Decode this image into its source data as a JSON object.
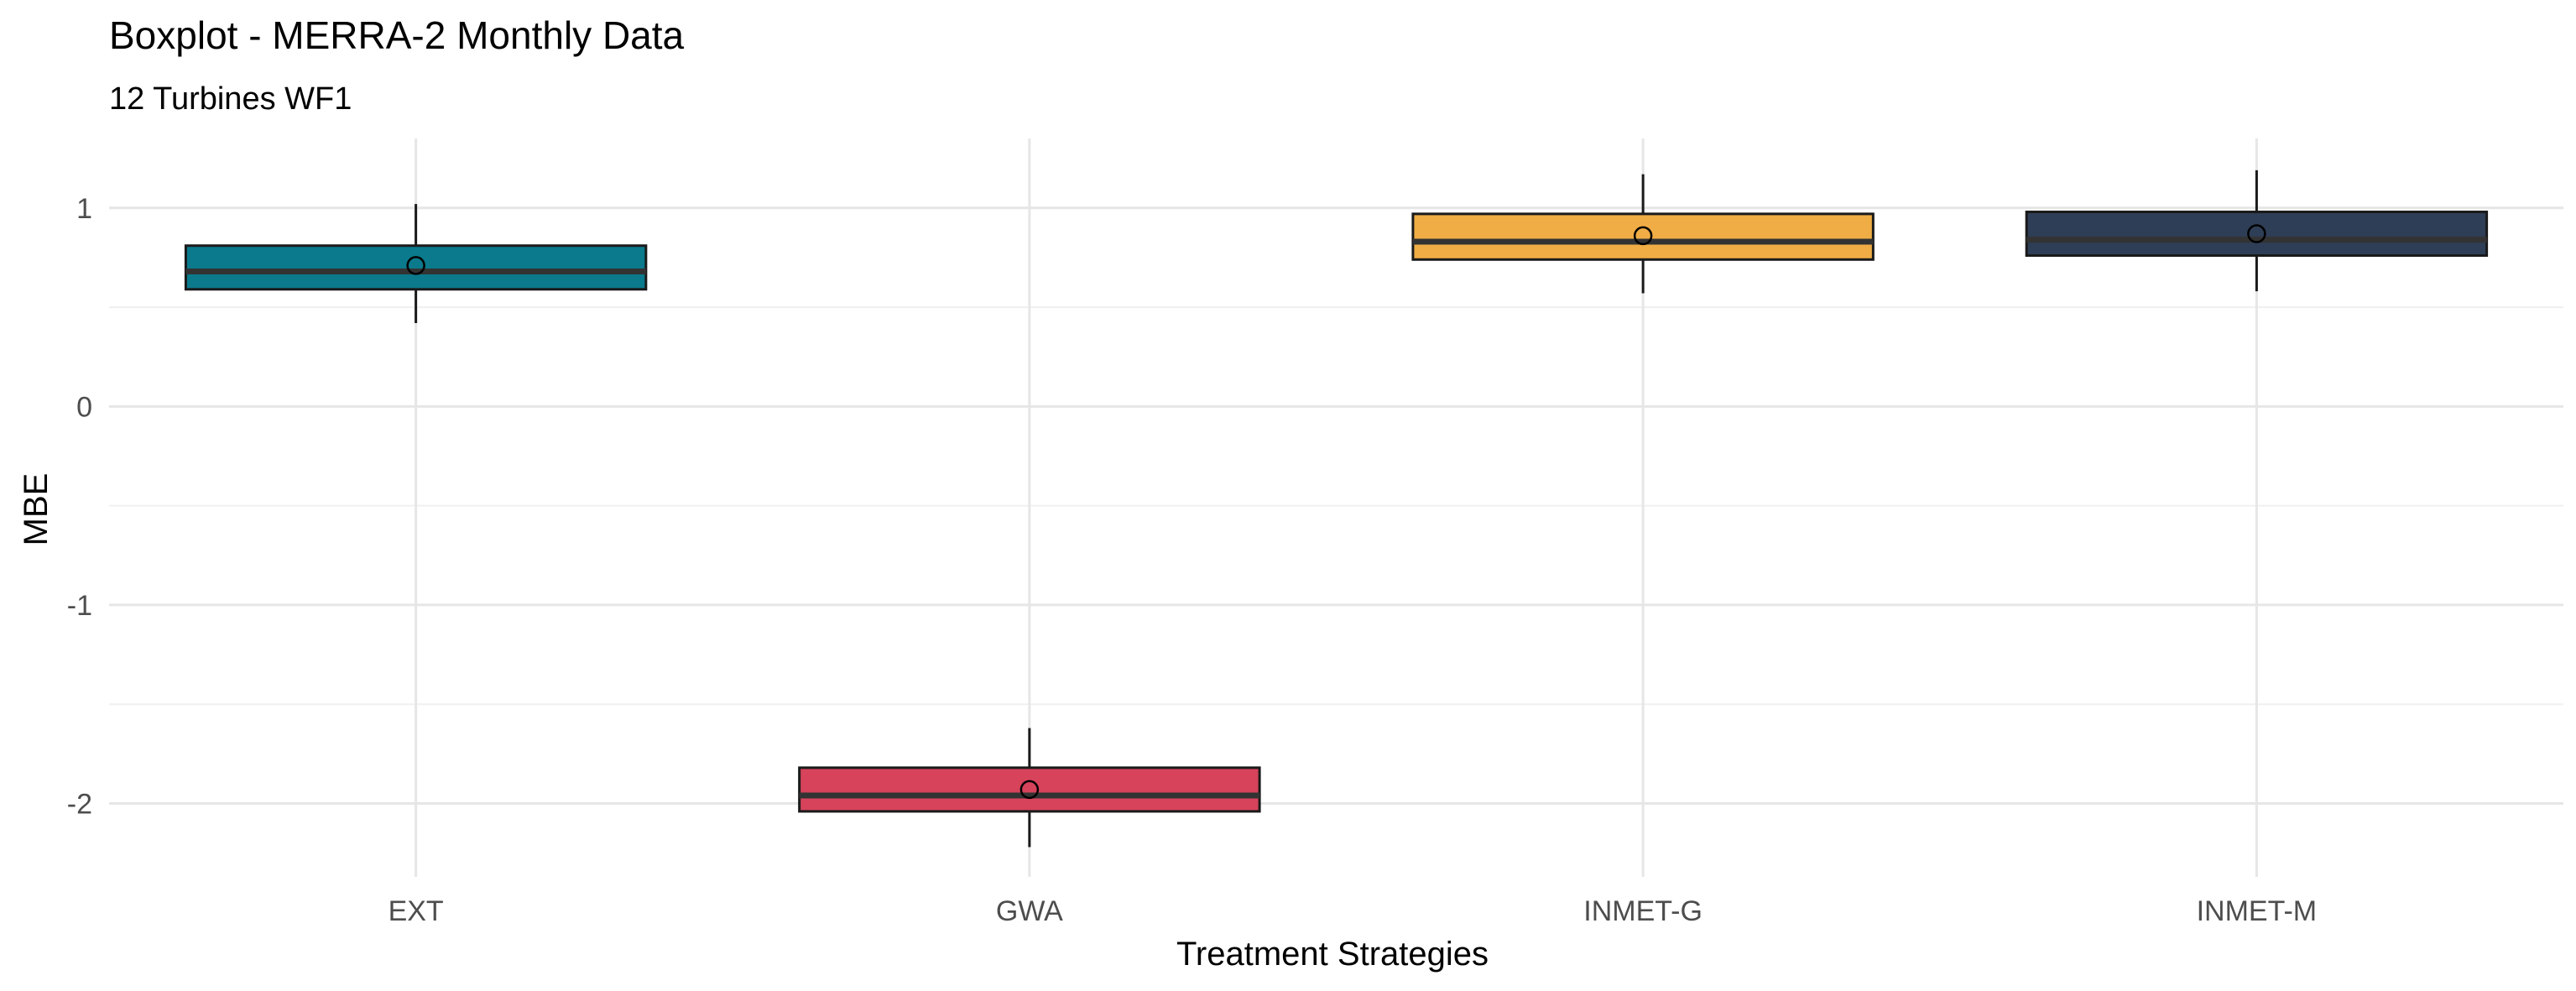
{
  "chart_data": {
    "type": "boxplot",
    "title": "Boxplot - MERRA-2 Monthly Data",
    "subtitle": "12 Turbines WF1",
    "xlabel": "Treatment Strategies",
    "ylabel": "MBE",
    "ylim": [
      -2.37,
      1.35
    ],
    "y_ticks": [
      -2,
      -1,
      0,
      1
    ],
    "y_tick_labels": [
      "-2",
      "-1",
      "0",
      "1"
    ],
    "y_minor_ticks": [
      -1.5,
      -0.5,
      0.5
    ],
    "grid": true,
    "legend": "none",
    "categories": [
      "EXT",
      "GWA",
      "INMET-G",
      "INMET-M"
    ],
    "series": [
      {
        "category": "EXT",
        "color": "#0b7a8c",
        "whisker_low": 0.42,
        "q1": 0.59,
        "median": 0.68,
        "q3": 0.81,
        "whisker_high": 1.02,
        "mean": 0.71
      },
      {
        "category": "GWA",
        "color": "#d6435b",
        "whisker_low": -2.22,
        "q1": -2.04,
        "median": -1.96,
        "q3": -1.82,
        "whisker_high": -1.62,
        "mean": -1.93
      },
      {
        "category": "INMET-G",
        "color": "#f0ad45",
        "whisker_low": 0.57,
        "q1": 0.74,
        "median": 0.83,
        "q3": 0.97,
        "whisker_high": 1.17,
        "mean": 0.86
      },
      {
        "category": "INMET-M",
        "color": "#2e3e56",
        "whisker_low": 0.58,
        "q1": 0.76,
        "median": 0.84,
        "q3": 0.98,
        "whisker_high": 1.19,
        "mean": 0.87
      }
    ]
  }
}
